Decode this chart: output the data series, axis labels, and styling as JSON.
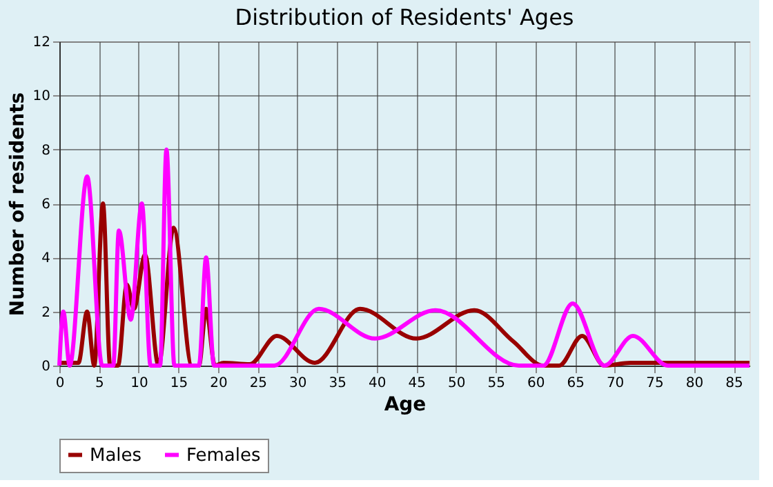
{
  "chart_data": {
    "type": "line",
    "title": "Distribution of Residents' Ages",
    "xlabel": "Age",
    "ylabel": "Number of residents",
    "xlim": [
      0,
      87
    ],
    "xticks": [
      0,
      5,
      10,
      15,
      20,
      25,
      30,
      35,
      40,
      45,
      50,
      55,
      60,
      65,
      70,
      75,
      80,
      85
    ],
    "ylim": [
      0,
      12
    ],
    "yticks": [
      0,
      2,
      4,
      6,
      8,
      10,
      12
    ],
    "grid": true,
    "legend": "bottom",
    "series": [
      {
        "name": "Males",
        "color": "#990000",
        "x": [
          0,
          2.4,
          3.5,
          4.4,
          5.5,
          6.4,
          7.4,
          8.5,
          9.4,
          10.8,
          12.5,
          14.4,
          16.7,
          17.6,
          18.5,
          19.6,
          20.7,
          24,
          27.4,
          32.2,
          37.9,
          45,
          52.3,
          57.2,
          61,
          63,
          65.9,
          68.7,
          72,
          87
        ],
        "values": [
          0.1,
          0.1,
          2,
          0,
          6,
          0,
          0,
          3,
          2.1,
          4.1,
          0,
          5.1,
          0,
          0,
          2.1,
          0,
          0.1,
          0.05,
          1.1,
          0.1,
          2.1,
          1,
          2.05,
          0.9,
          0,
          0,
          1.1,
          0,
          0.1,
          0.1
        ]
      },
      {
        "name": "Females",
        "color": "#ff00ff",
        "x": [
          0,
          0.5,
          1.3,
          3.5,
          5.4,
          6.8,
          7.5,
          9,
          10.4,
          11.5,
          12.7,
          13.5,
          14.5,
          17.6,
          18.5,
          19.5,
          27.1,
          32.7,
          39.8,
          47.4,
          57.9,
          61,
          64.7,
          68.7,
          72.3,
          76.7,
          87
        ],
        "values": [
          0,
          2,
          0,
          7,
          0,
          0,
          5,
          1.7,
          6,
          0,
          0,
          8,
          0,
          0,
          4,
          0,
          0,
          2.1,
          1,
          2.05,
          0,
          0,
          2.3,
          0,
          1.1,
          0,
          0
        ]
      }
    ]
  }
}
